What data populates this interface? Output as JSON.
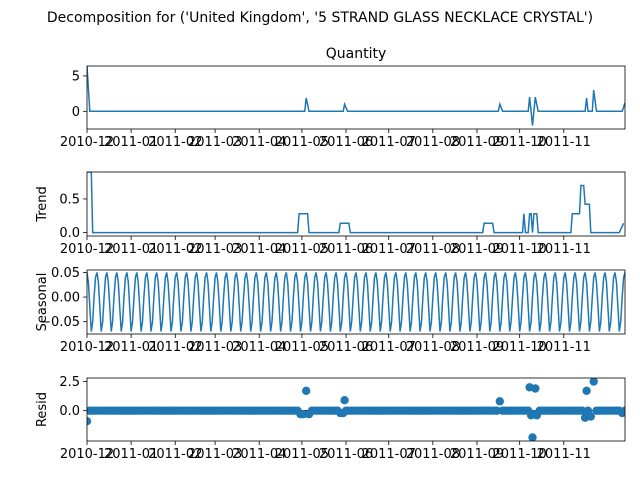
{
  "title": "Decomposition for ('United Kingdom', '5 STRAND GLASS NECKLACE CRYSTAL')",
  "colors": {
    "line": "#1f77b4",
    "axis": "#000000",
    "zero": "#000000"
  },
  "x_tick_labels": [
    "2010-12",
    "2011-01",
    "2011-02",
    "2011-03",
    "2011-04",
    "2011-05",
    "2011-06",
    "2011-07",
    "2011-08",
    "2011-09",
    "2011-10",
    "2011-11"
  ],
  "chart_data": [
    {
      "type": "line",
      "title": "Quantity",
      "ylabel": "",
      "ylim": [
        -2.5,
        6.4
      ],
      "yticks": [
        0,
        5
      ],
      "ytick_labels": [
        "0",
        "5"
      ],
      "x_range": [
        0,
        378
      ],
      "points": [
        [
          0,
          6.4
        ],
        [
          2,
          0
        ],
        [
          153,
          0
        ],
        [
          154,
          1.9
        ],
        [
          156,
          0
        ],
        [
          180,
          0
        ],
        [
          181,
          1.0
        ],
        [
          183,
          0
        ],
        [
          289,
          0
        ],
        [
          290,
          1.0
        ],
        [
          292,
          0
        ],
        [
          310,
          0
        ],
        [
          311,
          2.0
        ],
        [
          312,
          0
        ],
        [
          313,
          -2.0
        ],
        [
          314,
          0
        ],
        [
          315,
          2.0
        ],
        [
          317,
          0
        ],
        [
          350,
          0
        ],
        [
          351,
          1.9
        ],
        [
          352,
          0
        ],
        [
          355,
          0
        ],
        [
          356,
          3.0
        ],
        [
          358,
          0
        ],
        [
          376,
          0
        ],
        [
          378,
          1.2
        ]
      ]
    },
    {
      "type": "line",
      "title": "",
      "ylabel": "Trend",
      "ylim": [
        -0.05,
        0.9
      ],
      "yticks": [
        0,
        0.5
      ],
      "ytick_labels": [
        "0.0",
        "0.5"
      ],
      "x_range": [
        0,
        378
      ],
      "points": [
        [
          0,
          0.9
        ],
        [
          3,
          0.9
        ],
        [
          4,
          0
        ],
        [
          148,
          0
        ],
        [
          149,
          0.28
        ],
        [
          155,
          0.28
        ],
        [
          156,
          0
        ],
        [
          177,
          0
        ],
        [
          178,
          0.14
        ],
        [
          184,
          0.14
        ],
        [
          185,
          0
        ],
        [
          278,
          0
        ],
        [
          279,
          0.14
        ],
        [
          285,
          0.14
        ],
        [
          286,
          0
        ],
        [
          306,
          0
        ],
        [
          307,
          0.28
        ],
        [
          308,
          0
        ],
        [
          310,
          0
        ],
        [
          311,
          0.28
        ],
        [
          312,
          0.28
        ],
        [
          313,
          0
        ],
        [
          314,
          0.28
        ],
        [
          316,
          0.28
        ],
        [
          317,
          0
        ],
        [
          340,
          0
        ],
        [
          341,
          0.28
        ],
        [
          346,
          0.28
        ],
        [
          347,
          0.7
        ],
        [
          349,
          0.7
        ],
        [
          350,
          0.42
        ],
        [
          353,
          0.42
        ],
        [
          354,
          0
        ],
        [
          374,
          0
        ],
        [
          377,
          0.14
        ]
      ]
    },
    {
      "type": "line",
      "title": "",
      "ylabel": "Seasonal",
      "ylim": [
        -0.075,
        0.055
      ],
      "yticks": [
        0.05,
        0.0,
        -0.05
      ],
      "ytick_labels": [
        "0.05",
        "0.00",
        "−0.05"
      ],
      "x_range": [
        0,
        378
      ],
      "period": 7,
      "pattern": [
        0.05,
        0.03,
        -0.02,
        -0.07,
        -0.05,
        0.0,
        0.04
      ]
    },
    {
      "type": "scatter",
      "title": "",
      "ylabel": "Resid",
      "ylim": [
        -2.6,
        2.8
      ],
      "yticks": [
        2.5,
        0.0
      ],
      "ytick_labels": [
        "2.5",
        "0.0"
      ],
      "x_range": [
        0,
        378
      ],
      "outliers": [
        [
          0,
          -0.9
        ],
        [
          154,
          1.7
        ],
        [
          181,
          0.9
        ],
        [
          290,
          0.8
        ],
        [
          311,
          2.0
        ],
        [
          313,
          -2.3
        ],
        [
          315,
          1.9
        ],
        [
          351,
          1.7
        ],
        [
          356,
          2.5
        ]
      ],
      "dips": [
        [
          150,
          -0.3
        ],
        [
          152,
          -0.3
        ],
        [
          153,
          -0.3
        ],
        [
          155,
          -0.3
        ],
        [
          156,
          -0.3
        ],
        [
          178,
          -0.2
        ],
        [
          180,
          -0.2
        ],
        [
          183,
          -0.2
        ],
        [
          307,
          -0.3
        ],
        [
          312,
          -0.4
        ],
        [
          314,
          -0.3
        ],
        [
          316,
          -0.4
        ],
        [
          347,
          -0.6
        ],
        [
          349,
          -0.7
        ],
        [
          350,
          -0.6
        ],
        [
          353,
          -0.4
        ],
        [
          354,
          -0.5
        ],
        [
          376,
          -0.2
        ]
      ]
    }
  ]
}
